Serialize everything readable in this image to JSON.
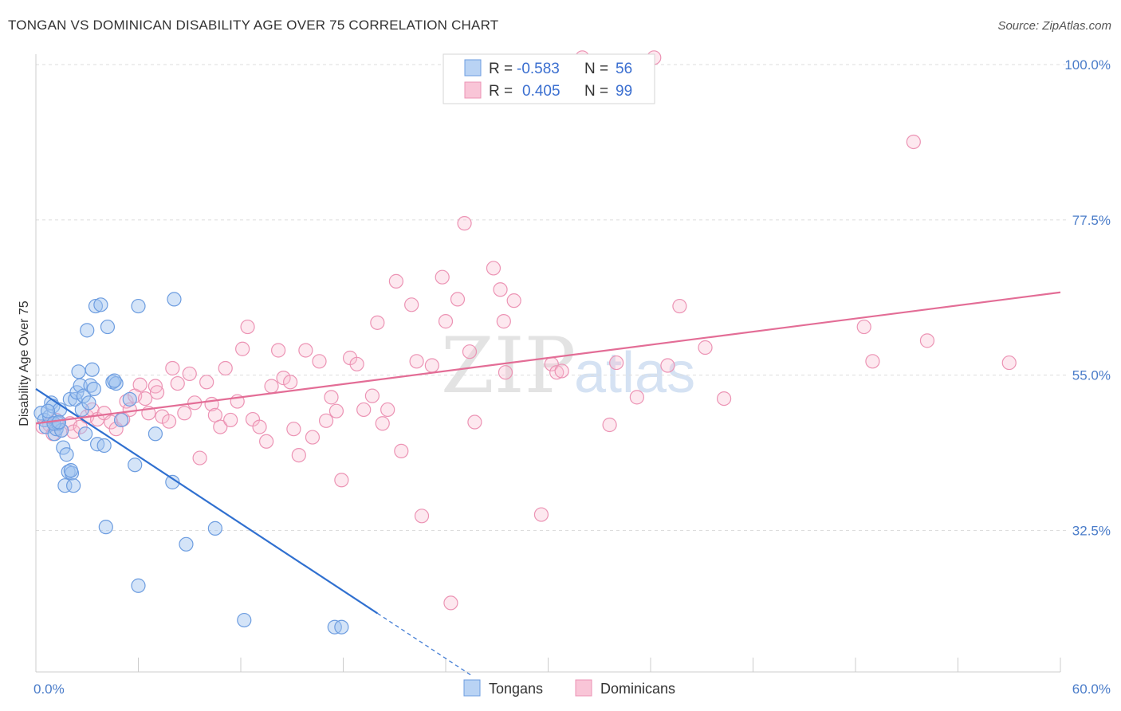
{
  "title": "TONGAN VS DOMINICAN DISABILITY AGE OVER 75 CORRELATION CHART",
  "source": "Source: ZipAtlas.com",
  "watermark": {
    "zip": "ZIP",
    "atlas": "atlas"
  },
  "colors": {
    "tongans": "#5b93e0",
    "dominicans": "#f08fb0",
    "tongans_line": "#3070d0",
    "dominicans_line": "#e36d96",
    "tick": "#4a7cc9"
  },
  "legend": {
    "rows": [
      {
        "r_label": "R =",
        "r_value": "-0.583",
        "n_label": "N =",
        "n_value": "56"
      },
      {
        "r_label": "R =",
        "r_value": "0.405",
        "n_label": "N =",
        "n_value": "99"
      }
    ]
  },
  "bottom_legend": [
    "Tongans",
    "Dominicans"
  ],
  "chart_data": {
    "type": "scatter",
    "xlabel": "",
    "ylabel": "Disability Age Over 75",
    "xlim": [
      0,
      60
    ],
    "ylim": [
      12,
      101.5
    ],
    "x_tick_labels": [
      {
        "value": 0,
        "label": "0.0%"
      },
      {
        "value": 60,
        "label": "60.0%"
      }
    ],
    "x_minor_ticks": [
      6,
      12,
      18,
      24,
      30,
      36,
      42,
      48,
      54,
      60
    ],
    "y_ticks": [
      {
        "value": 32.5,
        "label": "32.5%"
      },
      {
        "value": 55.0,
        "label": "55.0%"
      },
      {
        "value": 77.5,
        "label": "77.5%"
      },
      {
        "value": 100.0,
        "label": "100.0%"
      }
    ],
    "grid": true,
    "legend_position": "top-center",
    "series": [
      {
        "name": "Tongans",
        "points": [
          [
            0.3,
            49.5
          ],
          [
            0.5,
            48.5
          ],
          [
            0.6,
            47.5
          ],
          [
            0.8,
            49.0
          ],
          [
            0.9,
            51.0
          ],
          [
            1.0,
            50.5
          ],
          [
            1.1,
            46.5
          ],
          [
            1.2,
            47.2
          ],
          [
            1.3,
            48.0
          ],
          [
            1.4,
            50.0
          ],
          [
            1.5,
            47.0
          ],
          [
            1.6,
            44.5
          ],
          [
            1.7,
            39.0
          ],
          [
            1.8,
            43.5
          ],
          [
            1.9,
            41.0
          ],
          [
            2.0,
            51.5
          ],
          [
            2.1,
            40.8
          ],
          [
            2.2,
            39.0
          ],
          [
            2.3,
            51.5
          ],
          [
            2.4,
            52.5
          ],
          [
            2.5,
            55.5
          ],
          [
            2.6,
            53.5
          ],
          [
            2.7,
            50.0
          ],
          [
            2.8,
            52.0
          ],
          [
            2.9,
            46.5
          ],
          [
            3.0,
            61.5
          ],
          [
            3.1,
            51.0
          ],
          [
            3.2,
            53.5
          ],
          [
            3.3,
            55.8
          ],
          [
            3.4,
            53.0
          ],
          [
            3.5,
            65.0
          ],
          [
            3.6,
            45.0
          ],
          [
            3.8,
            65.2
          ],
          [
            4.0,
            44.8
          ],
          [
            4.1,
            33.0
          ],
          [
            4.2,
            62.0
          ],
          [
            4.5,
            54.0
          ],
          [
            4.7,
            53.8
          ],
          [
            5.0,
            48.5
          ],
          [
            5.5,
            51.5
          ],
          [
            5.8,
            42.0
          ],
          [
            6.0,
            65.0
          ],
          [
            6.0,
            24.5
          ],
          [
            7.0,
            46.5
          ],
          [
            8.1,
            66.0
          ],
          [
            8.0,
            39.5
          ],
          [
            8.8,
            30.5
          ],
          [
            10.5,
            32.8
          ],
          [
            12.2,
            19.5
          ],
          [
            17.5,
            18.5
          ],
          [
            17.9,
            18.5
          ],
          [
            0.7,
            49.8
          ],
          [
            1.05,
            48.0
          ],
          [
            2.05,
            41.2
          ],
          [
            1.35,
            48.2
          ],
          [
            4.6,
            54.2
          ]
        ]
      },
      {
        "name": "Dominicans",
        "points": [
          [
            0.4,
            47.5
          ],
          [
            0.8,
            47.8
          ],
          [
            1.0,
            46.5
          ],
          [
            1.2,
            48.5
          ],
          [
            1.5,
            47.0
          ],
          [
            2.0,
            48.0
          ],
          [
            2.2,
            46.8
          ],
          [
            2.6,
            47.5
          ],
          [
            3.0,
            49.0
          ],
          [
            3.3,
            50.0
          ],
          [
            3.6,
            48.6
          ],
          [
            4.0,
            49.5
          ],
          [
            4.4,
            48.2
          ],
          [
            4.7,
            47.2
          ],
          [
            5.1,
            48.6
          ],
          [
            5.3,
            51.2
          ],
          [
            5.5,
            50.0
          ],
          [
            5.8,
            52.0
          ],
          [
            6.1,
            53.6
          ],
          [
            6.4,
            51.6
          ],
          [
            6.6,
            49.5
          ],
          [
            7.0,
            53.4
          ],
          [
            7.1,
            52.5
          ],
          [
            7.4,
            49.0
          ],
          [
            7.8,
            48.3
          ],
          [
            8.0,
            56.0
          ],
          [
            8.3,
            53.8
          ],
          [
            8.7,
            49.5
          ],
          [
            9.0,
            55.2
          ],
          [
            9.3,
            51.0
          ],
          [
            9.6,
            43.0
          ],
          [
            10.0,
            54.0
          ],
          [
            10.3,
            50.8
          ],
          [
            10.5,
            49.2
          ],
          [
            10.8,
            47.5
          ],
          [
            11.1,
            56.0
          ],
          [
            11.4,
            48.5
          ],
          [
            11.8,
            51.2
          ],
          [
            12.1,
            58.8
          ],
          [
            12.4,
            62.0
          ],
          [
            12.7,
            48.6
          ],
          [
            13.1,
            47.5
          ],
          [
            13.5,
            45.4
          ],
          [
            13.8,
            53.4
          ],
          [
            14.2,
            58.6
          ],
          [
            14.5,
            54.6
          ],
          [
            14.9,
            54.0
          ],
          [
            15.1,
            47.2
          ],
          [
            15.4,
            43.4
          ],
          [
            15.8,
            58.6
          ],
          [
            16.2,
            46.0
          ],
          [
            16.6,
            57.0
          ],
          [
            17.0,
            48.4
          ],
          [
            17.3,
            51.8
          ],
          [
            17.6,
            49.8
          ],
          [
            17.9,
            39.8
          ],
          [
            18.4,
            57.5
          ],
          [
            18.8,
            56.6
          ],
          [
            19.2,
            50.0
          ],
          [
            19.7,
            52.0
          ],
          [
            20.0,
            62.6
          ],
          [
            20.3,
            48.0
          ],
          [
            20.6,
            50.0
          ],
          [
            21.1,
            68.6
          ],
          [
            21.4,
            44.0
          ],
          [
            22.0,
            65.2
          ],
          [
            22.3,
            57.0
          ],
          [
            22.6,
            34.6
          ],
          [
            23.2,
            56.4
          ],
          [
            23.8,
            69.2
          ],
          [
            24.0,
            62.8
          ],
          [
            24.3,
            22.0
          ],
          [
            24.7,
            66.0
          ],
          [
            25.1,
            77.0
          ],
          [
            25.4,
            58.4
          ],
          [
            25.7,
            48.2
          ],
          [
            26.8,
            70.5
          ],
          [
            27.2,
            67.4
          ],
          [
            27.4,
            62.8
          ],
          [
            27.5,
            55.4
          ],
          [
            28.0,
            65.8
          ],
          [
            29.6,
            34.8
          ],
          [
            30.2,
            56.6
          ],
          [
            30.5,
            55.4
          ],
          [
            30.8,
            55.6
          ],
          [
            32.0,
            101.0
          ],
          [
            33.6,
            47.8
          ],
          [
            34.0,
            56.8
          ],
          [
            35.2,
            51.8
          ],
          [
            36.2,
            101.0
          ],
          [
            37.0,
            56.4
          ],
          [
            39.2,
            59.0
          ],
          [
            40.3,
            51.6
          ],
          [
            37.7,
            65.0
          ],
          [
            48.5,
            62.0
          ],
          [
            51.4,
            88.8
          ],
          [
            52.2,
            60.0
          ],
          [
            49.0,
            57.0
          ],
          [
            57.0,
            56.8
          ]
        ]
      }
    ],
    "trendlines": [
      {
        "series": "Tongans",
        "x": [
          0,
          20
        ],
        "y": [
          53.0,
          20.5
        ],
        "extension_x": [
          20,
          25.5
        ],
        "extension_y": [
          20.5,
          11.5
        ]
      },
      {
        "series": "Dominicans",
        "x": [
          0,
          60
        ],
        "y": [
          48.0,
          67.0
        ]
      }
    ]
  }
}
